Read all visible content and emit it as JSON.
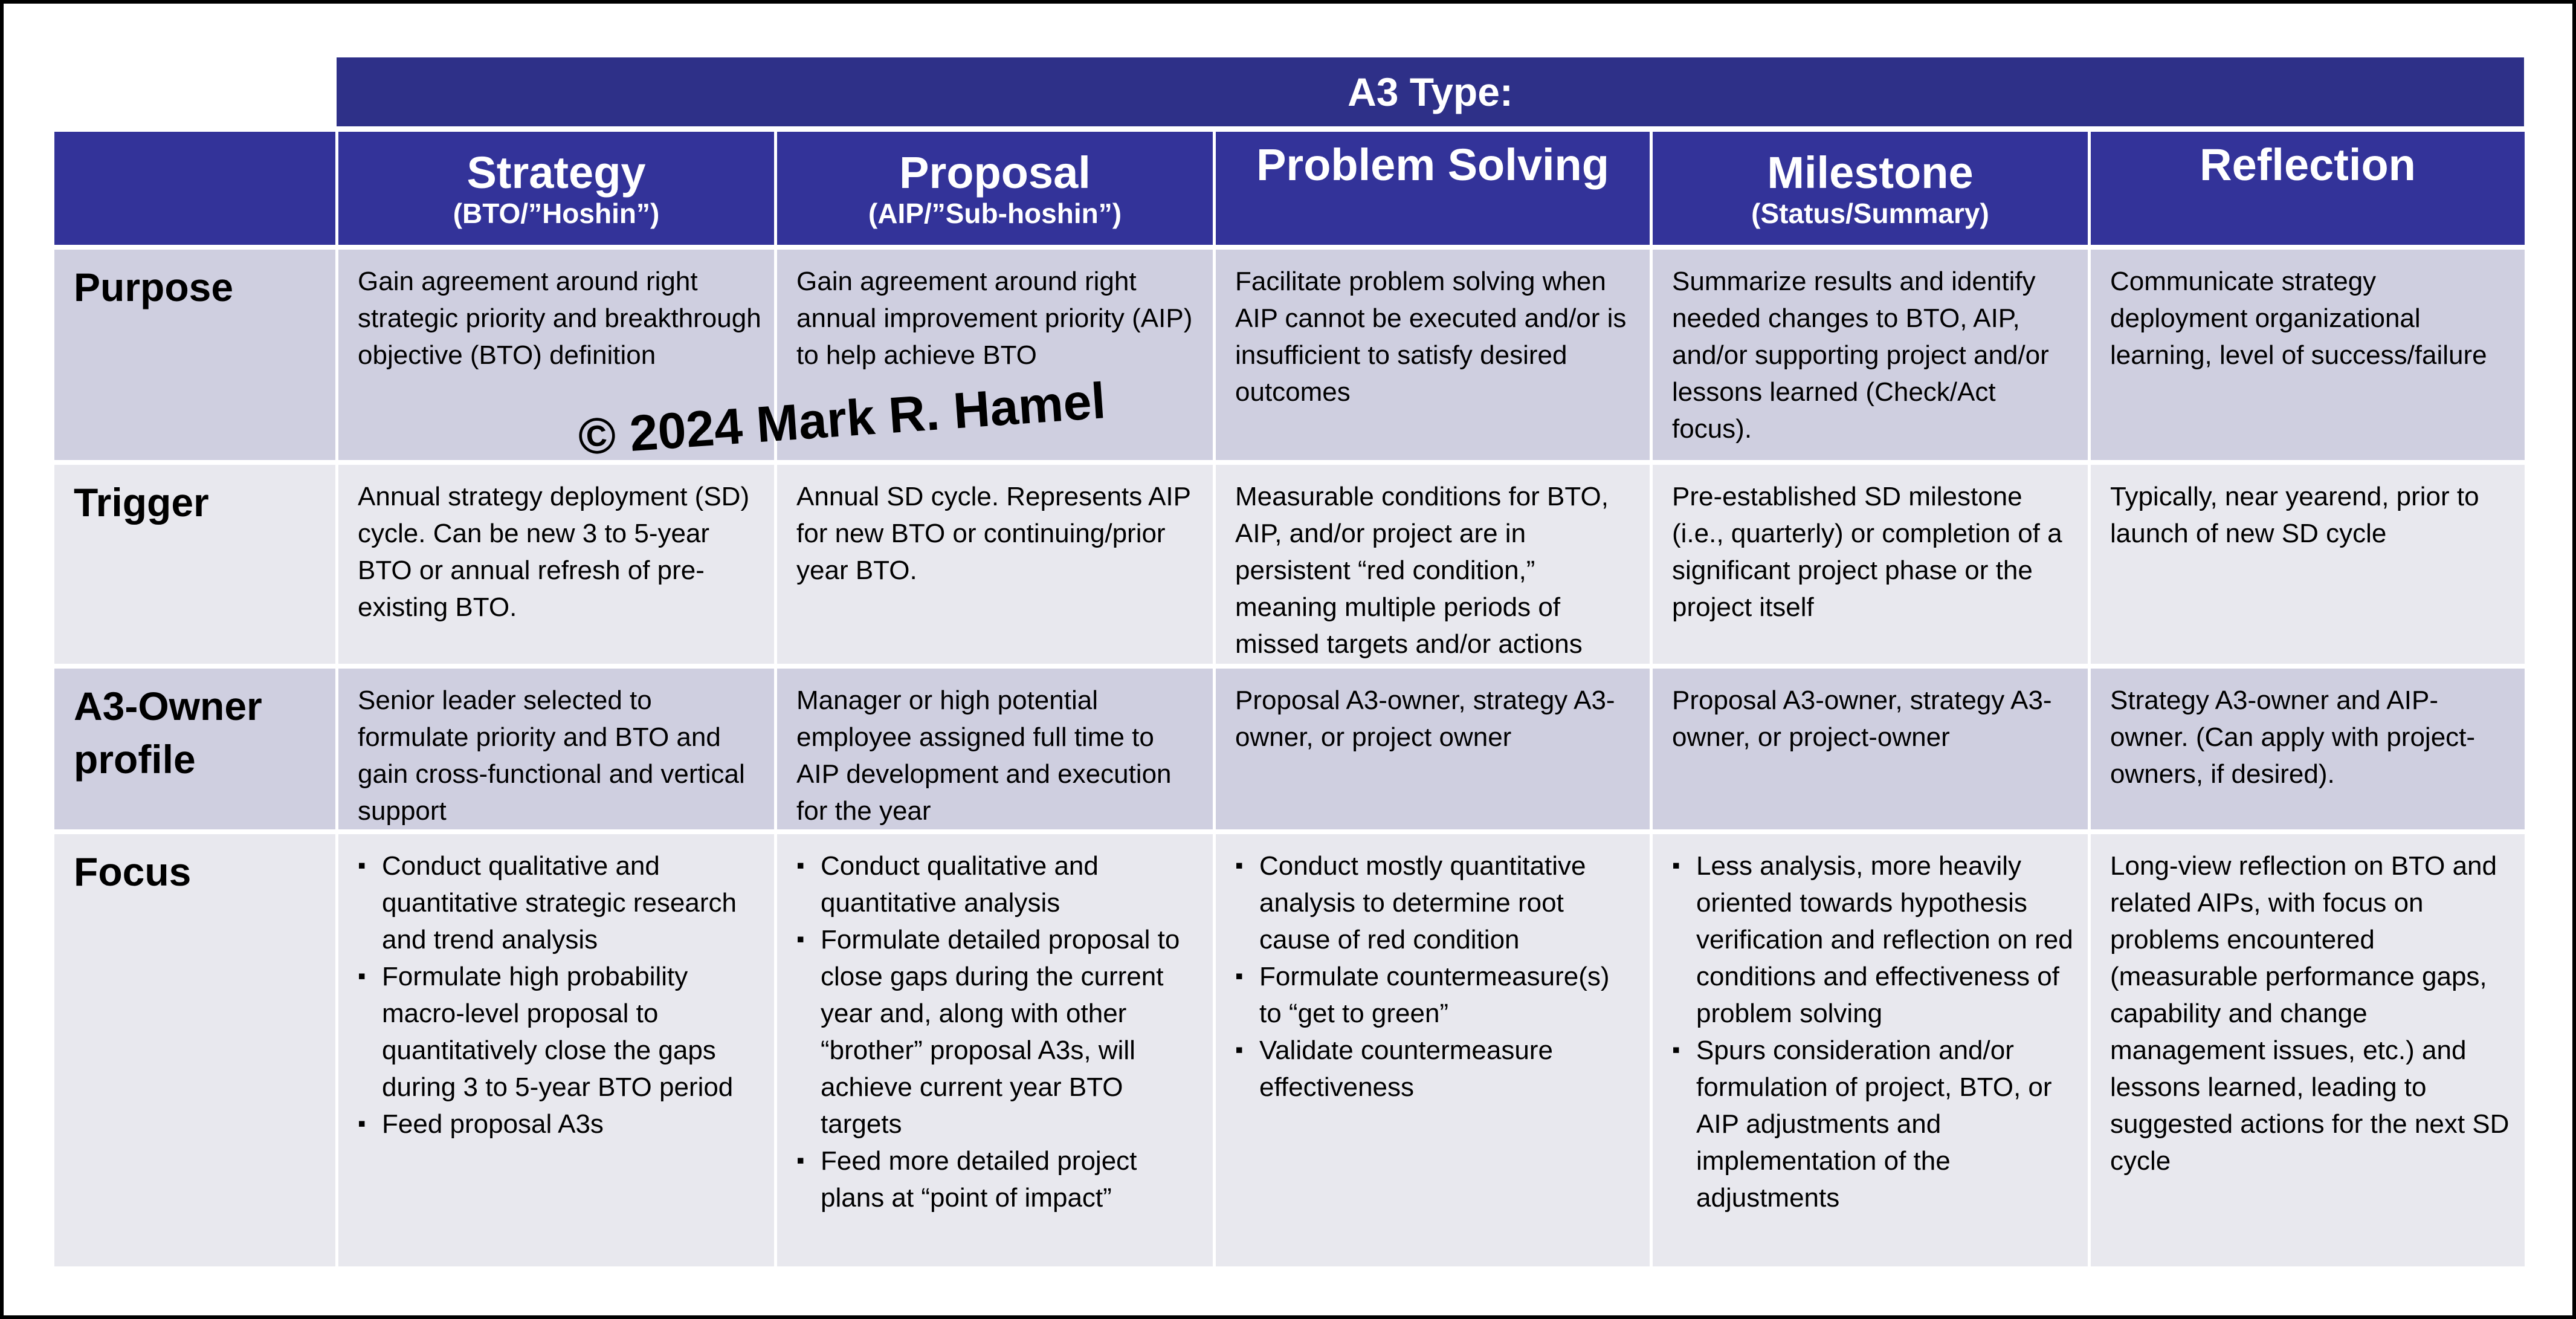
{
  "banner": "A3 Type:",
  "columns": [
    {
      "title": "Strategy",
      "subtitle": "(BTO/”Hoshin”)"
    },
    {
      "title": "Proposal",
      "subtitle": "(AIP/”Sub-hoshin”)"
    },
    {
      "title": "Problem Solving",
      "subtitle": ""
    },
    {
      "title": "Milestone",
      "subtitle": "(Status/Summary)"
    },
    {
      "title": "Reflection",
      "subtitle": ""
    }
  ],
  "rows": [
    {
      "label": "Purpose",
      "cells": [
        "Gain agreement around right strategic priority and breakthrough objective (BTO) definition",
        "Gain agreement around right annual improvement priority (AIP) to help achieve BTO",
        "Facilitate problem solving when AIP cannot be executed and/or is insufficient to satisfy desired outcomes",
        "Summarize results and identify needed changes to BTO, AIP, and/or supporting project and/or lessons learned (Check/Act focus).",
        "Communicate strategy deployment organizational learning, level of success/failure"
      ]
    },
    {
      "label": "Trigger",
      "cells": [
        "Annual strategy deployment (SD) cycle.  Can be new 3 to 5-year BTO or annual refresh of pre-existing BTO.",
        "Annual SD cycle. Represents AIP for new BTO or continuing/prior year BTO.",
        "Measurable conditions for BTO, AIP, and/or project are in persistent “red condition,” meaning multiple periods of missed targets and/or actions",
        "Pre-established SD milestone (i.e., quarterly) or completion of a significant project phase or the project itself",
        "Typically, near yearend, prior to launch of new SD cycle"
      ]
    },
    {
      "label": "A3-Owner profile",
      "cells": [
        "Senior leader selected to formulate priority and BTO and gain cross-functional and vertical support",
        "Manager or high potential employee assigned full time to AIP development and execution for the year",
        "Proposal A3-owner, strategy A3-owner, or project owner",
        "Proposal A3-owner, strategy A3-owner, or project-owner",
        "Strategy A3-owner and AIP-owner. (Can apply with project-owners, if desired)."
      ]
    }
  ],
  "focus": {
    "label": "Focus",
    "strategy": [
      "Conduct qualitative and quantitative strategic research and trend analysis",
      "Formulate high probability macro-level proposal to quantitatively close the gaps during 3 to 5-year BTO period",
      "Feed proposal A3s"
    ],
    "proposal": [
      "Conduct qualitative and quantitative analysis",
      "Formulate detailed proposal to close gaps during the current year and, along with other “brother” proposal A3s, will achieve current year BTO targets",
      "Feed more detailed project plans at “point of impact”"
    ],
    "problem_solving": [
      "Conduct mostly quantitative analysis to determine root cause of red condition",
      "Formulate countermeasure(s) to “get to green”",
      "Validate countermeasure effectiveness"
    ],
    "milestone": [
      "Less analysis, more heavily oriented towards hypothesis verification and reflection on red conditions and effectiveness of problem solving",
      "Spurs consideration and/or formulation of project, BTO, or AIP adjustments and implementation of the adjustments"
    ],
    "reflection": "Long-view reflection on BTO and related AIPs, with focus on problems encountered (measurable performance gaps, capability and change management issues, etc.) and lessons learned, leading to suggested actions for the next SD cycle"
  },
  "watermark": "© 2024 Mark R. Hamel",
  "colors": {
    "banner": "#2e3088",
    "header": "#333399",
    "row_dark": "#cfcfe0",
    "row_light": "#e8e8ee"
  }
}
